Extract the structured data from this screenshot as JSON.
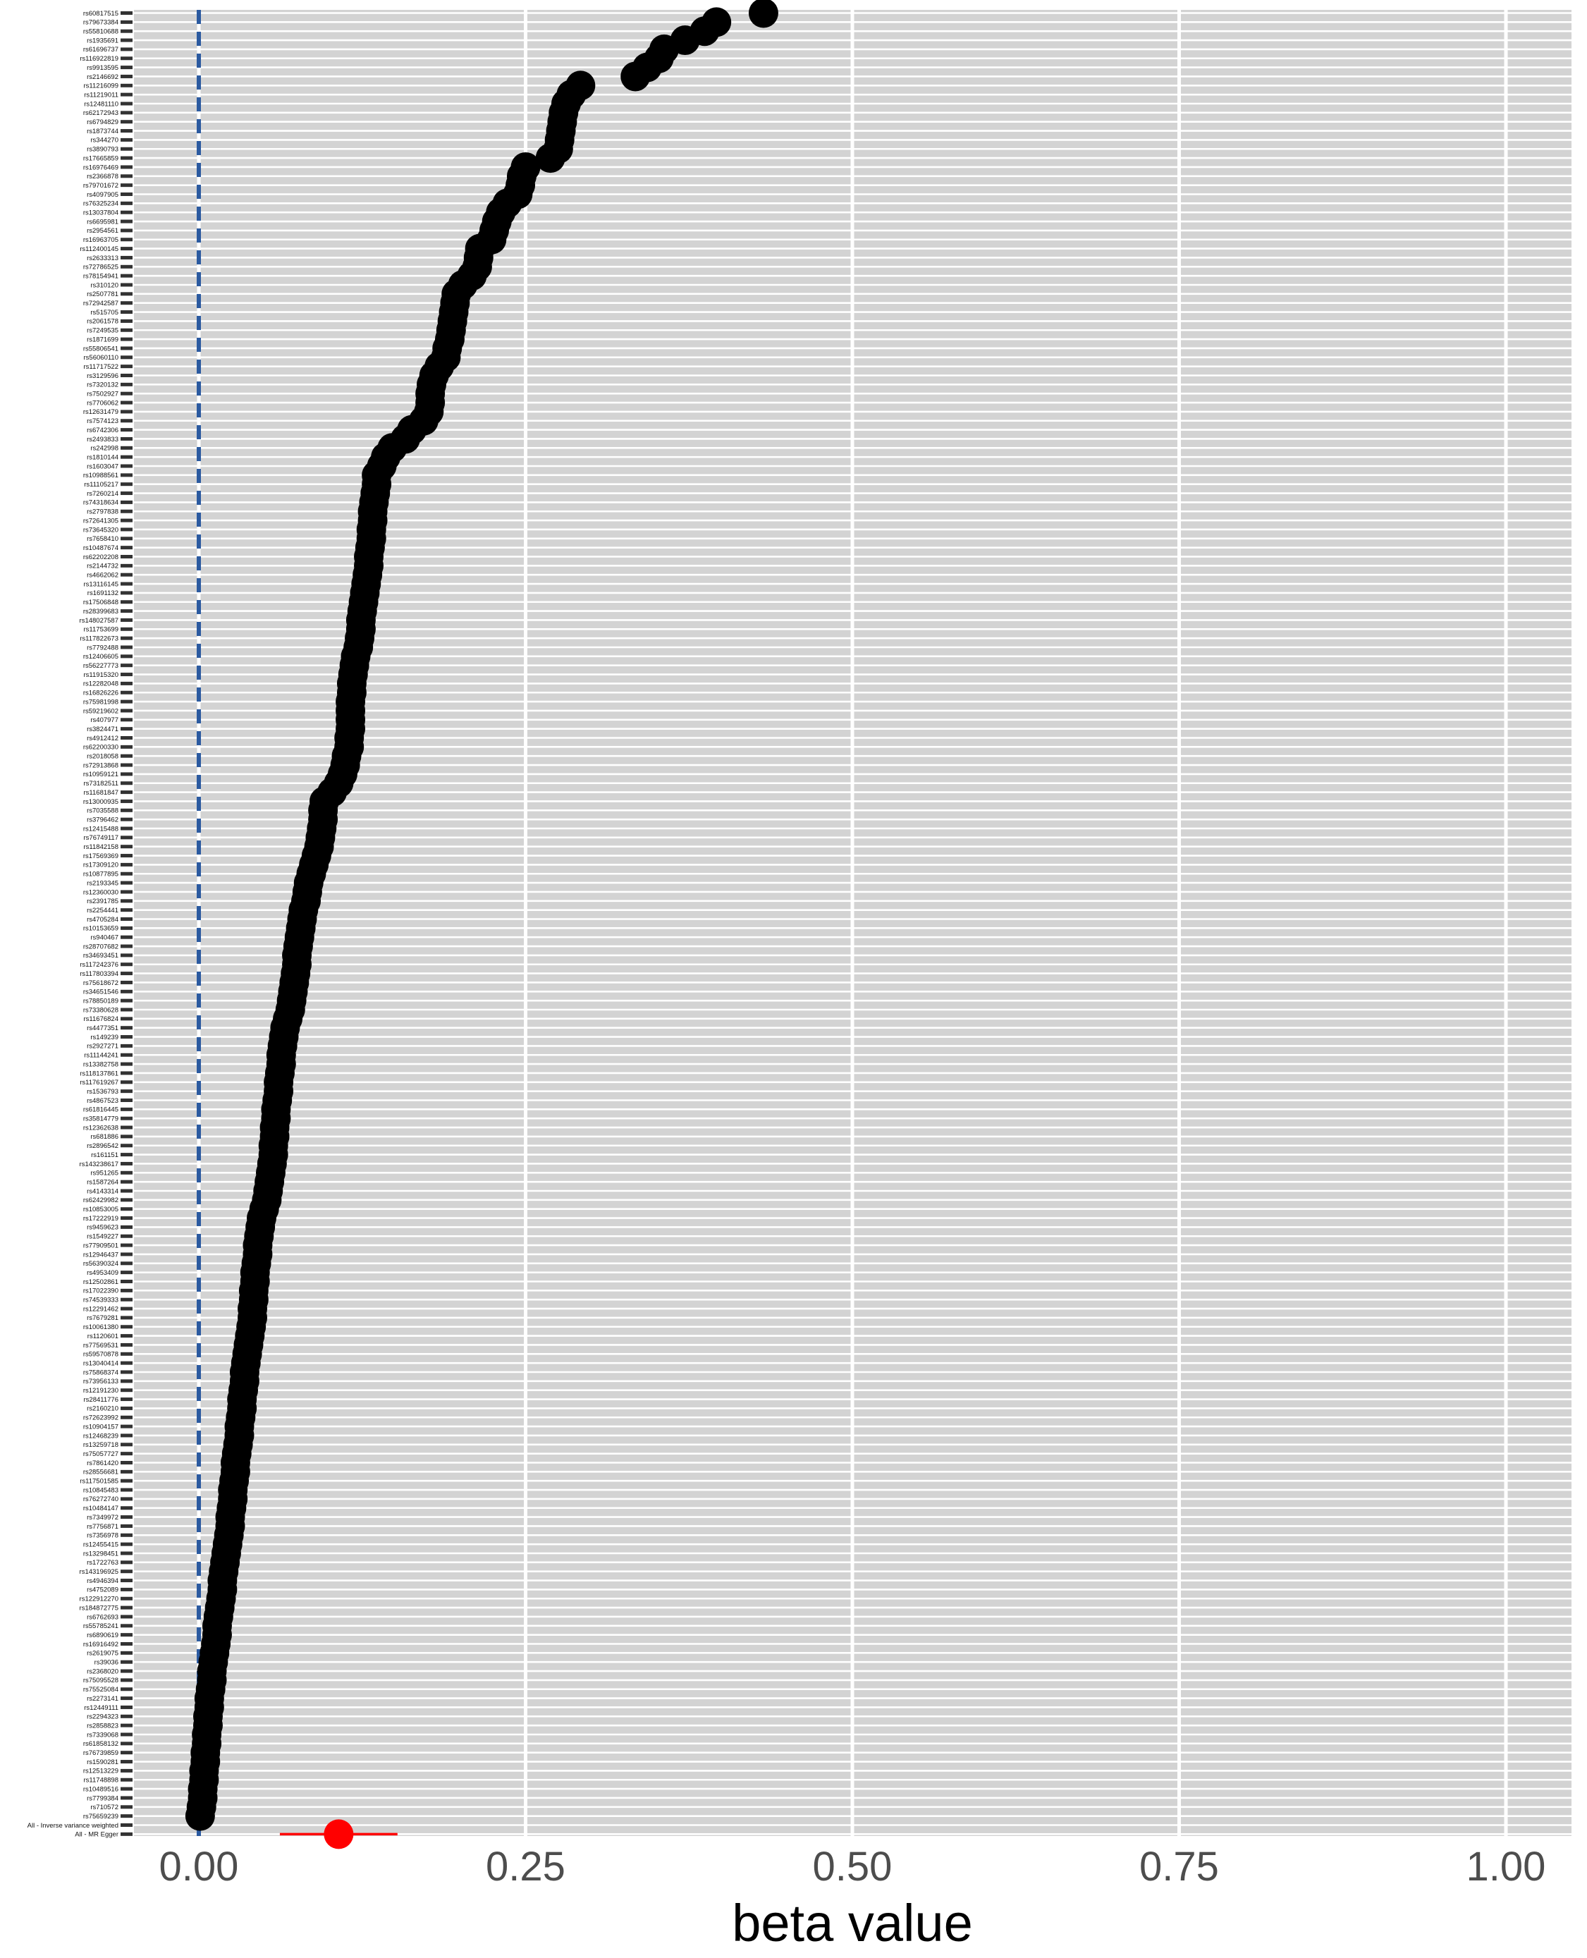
{
  "chart_data": {
    "type": "scatter",
    "title": "",
    "xlabel": "beta value",
    "ylabel": "",
    "xlim": [
      -0.1,
      1.05
    ],
    "x_ticks": [
      "0.00",
      "0.25",
      "0.50",
      "0.75",
      "1.00"
    ],
    "x_tick_values": [
      0,
      0.25,
      0.5,
      0.75,
      1.0
    ],
    "grid": true,
    "reference_line": {
      "x": 0,
      "style": "dashed",
      "color": "#2b5aa0"
    },
    "colors": {
      "snp_point": "#000000",
      "summary": "#ff0000",
      "panel": "#d3d3d3"
    },
    "categories": [
      "rs60817515",
      "rs79673384",
      "rs55810688",
      "rs1935691",
      "rs61696737",
      "rs116922819",
      "rs9913595",
      "rs2146692",
      "rs11216099",
      "rs11219011",
      "rs12481110",
      "rs62172943",
      "rs6794829",
      "rs1873744",
      "rs344270",
      "rs3890793",
      "rs17665859",
      "rs16976469",
      "rs2366878",
      "rs79701672",
      "rs4097905",
      "rs76325234",
      "rs13037804",
      "rs6695981",
      "rs2954561",
      "rs16963705",
      "rs112400145",
      "rs2633313",
      "rs72786525",
      "rs78154941",
      "rs310120",
      "rs2507781",
      "rs72942587",
      "rs515705",
      "rs2061578",
      "rs7249535",
      "rs1871699",
      "rs55806541",
      "rs56060110",
      "rs11717522",
      "rs3129596",
      "rs7320132",
      "rs7502927",
      "rs7706062",
      "rs12631479",
      "rs7574123",
      "rs6742306",
      "rs2493833",
      "rs242998",
      "rs1810144",
      "rs1603047",
      "rs10988561",
      "rs11105217",
      "rs7260214",
      "rs74318634",
      "rs2797838",
      "rs72641305",
      "rs73645320",
      "rs7658410",
      "rs10487674",
      "rs62202208",
      "rs2144732",
      "rs4662062",
      "rs13116145",
      "rs1691132",
      "rs17506848",
      "rs28399683",
      "rs148027587",
      "rs11753699",
      "rs117822673",
      "rs7792488",
      "rs12406605",
      "rs56227773",
      "rs11915320",
      "rs12282048",
      "rs16826226",
      "rs75981998",
      "rs59219602",
      "rs407977",
      "rs3824471",
      "rs4912412",
      "rs62200330",
      "rs2018058",
      "rs72913868",
      "rs10959121",
      "rs73182511",
      "rs11681847",
      "rs13000935",
      "rs7035588",
      "rs3796462",
      "rs12415488",
      "rs76749117",
      "rs11842158",
      "rs17569369",
      "rs17309120",
      "rs10877895",
      "rs2193345",
      "rs12360030",
      "rs2391785",
      "rs2254441",
      "rs4705284",
      "rs10153659",
      "rs940467",
      "rs28707682",
      "rs34693451",
      "rs117242376",
      "rs117803394",
      "rs75618672",
      "rs34651546",
      "rs78850189",
      "rs73380628",
      "rs11676824",
      "rs4477351",
      "rs149239",
      "rs2927271",
      "rs11144241",
      "rs13382758",
      "rs118137861",
      "rs117619267",
      "rs1536793",
      "rs4867523",
      "rs61816445",
      "rs35814779",
      "rs12362638",
      "rs681886",
      "rs2896542",
      "rs161151",
      "rs143238617",
      "rs951265",
      "rs1587264",
      "rs4143314",
      "rs62429982",
      "rs10853005",
      "rs17222919",
      "rs9459623",
      "rs1549227",
      "rs77909501",
      "rs12946437",
      "rs56390324",
      "rs4953409",
      "rs12502861",
      "rs17022390",
      "rs74539333",
      "rs12291462",
      "rs7679281",
      "rs10061380",
      "rs1120601",
      "rs77569531",
      "rs59570878",
      "rs13040414",
      "rs75868374",
      "rs73956133",
      "rs12191230",
      "rs28411776",
      "rs2160210",
      "rs72623992",
      "rs10904157",
      "rs12468239",
      "rs13259718",
      "rs75057727",
      "rs7861420",
      "rs28556681",
      "rs117501585",
      "rs10845483",
      "rs76272740",
      "rs10484147",
      "rs7349972",
      "rs7756871",
      "rs7356978",
      "rs12455415",
      "rs13298451",
      "rs1722763",
      "rs143196925",
      "rs4946394",
      "rs4752089",
      "rs122912270",
      "rs184872775",
      "rs6762693",
      "rs55785241",
      "rs6890619",
      "rs16916492",
      "rs2619075",
      "rs39036",
      "rs2368020",
      "rs75095528",
      "rs75525084",
      "rs2273141",
      "rs12449111",
      "rs2294323",
      "rs2858823",
      "rs7339068",
      "rs61858132",
      "rs76739859",
      "rs1590281",
      "rs12513229",
      "rs11748898",
      "rs10489516",
      "rs7799384",
      "rs710572",
      "rs75659239",
      "All - Inverse variance weighted",
      "All - MR Egger"
    ],
    "series": [
      {
        "values": [
          0.432,
          0.396,
          0.387,
          0.372,
          0.356,
          0.352,
          0.343,
          0.334,
          0.292,
          0.285,
          0.281,
          0.279,
          0.278,
          0.277,
          0.276,
          0.275,
          0.269,
          0.25,
          0.247,
          0.246,
          0.244,
          0.236,
          0.231,
          0.228,
          0.226,
          0.224,
          0.215,
          0.214,
          0.213,
          0.209,
          0.202,
          0.197,
          0.196,
          0.195,
          0.194,
          0.193,
          0.192,
          0.19,
          0.189,
          0.184,
          0.18,
          0.178,
          0.177,
          0.177,
          0.176,
          0.172,
          0.163,
          0.158,
          0.148,
          0.143,
          0.14,
          0.136,
          0.136,
          0.135,
          0.134,
          0.133,
          0.133,
          0.132,
          0.132,
          0.131,
          0.13,
          0.13,
          0.129,
          0.128,
          0.127,
          0.126,
          0.125,
          0.124,
          0.124,
          0.123,
          0.122,
          0.12,
          0.119,
          0.118,
          0.117,
          0.117,
          0.116,
          0.116,
          0.116,
          0.116,
          0.115,
          0.115,
          0.113,
          0.112,
          0.11,
          0.107,
          0.102,
          0.096,
          0.095,
          0.095,
          0.094,
          0.093,
          0.092,
          0.09,
          0.088,
          0.086,
          0.084,
          0.083,
          0.082,
          0.08,
          0.079,
          0.078,
          0.077,
          0.076,
          0.075,
          0.075,
          0.074,
          0.073,
          0.072,
          0.071,
          0.07,
          0.068,
          0.066,
          0.065,
          0.064,
          0.063,
          0.063,
          0.062,
          0.061,
          0.061,
          0.06,
          0.059,
          0.059,
          0.058,
          0.058,
          0.057,
          0.057,
          0.056,
          0.055,
          0.054,
          0.053,
          0.052,
          0.05,
          0.048,
          0.047,
          0.046,
          0.045,
          0.045,
          0.044,
          0.043,
          0.043,
          0.042,
          0.042,
          0.041,
          0.041,
          0.04,
          0.039,
          0.038,
          0.037,
          0.036,
          0.035,
          0.035,
          0.034,
          0.033,
          0.033,
          0.032,
          0.031,
          0.031,
          0.03,
          0.029,
          0.028,
          0.028,
          0.027,
          0.026,
          0.026,
          0.025,
          0.024,
          0.024,
          0.023,
          0.022,
          0.021,
          0.02,
          0.019,
          0.018,
          0.018,
          0.017,
          0.016,
          0.015,
          0.014,
          0.014,
          0.013,
          0.012,
          0.011,
          0.01,
          0.01,
          0.009,
          0.008,
          0.008,
          0.007,
          0.007,
          0.006,
          0.006,
          0.005,
          0.005,
          0.004,
          0.004,
          0.003,
          0.003,
          0.002,
          0.001
        ]
      }
    ],
    "summary": [
      {
        "label": "All - Inverse variance weighted",
        "beta": null
      },
      {
        "label": "All - MR Egger",
        "beta": 0.107,
        "ci": [
          0.062,
          0.152
        ]
      }
    ]
  }
}
